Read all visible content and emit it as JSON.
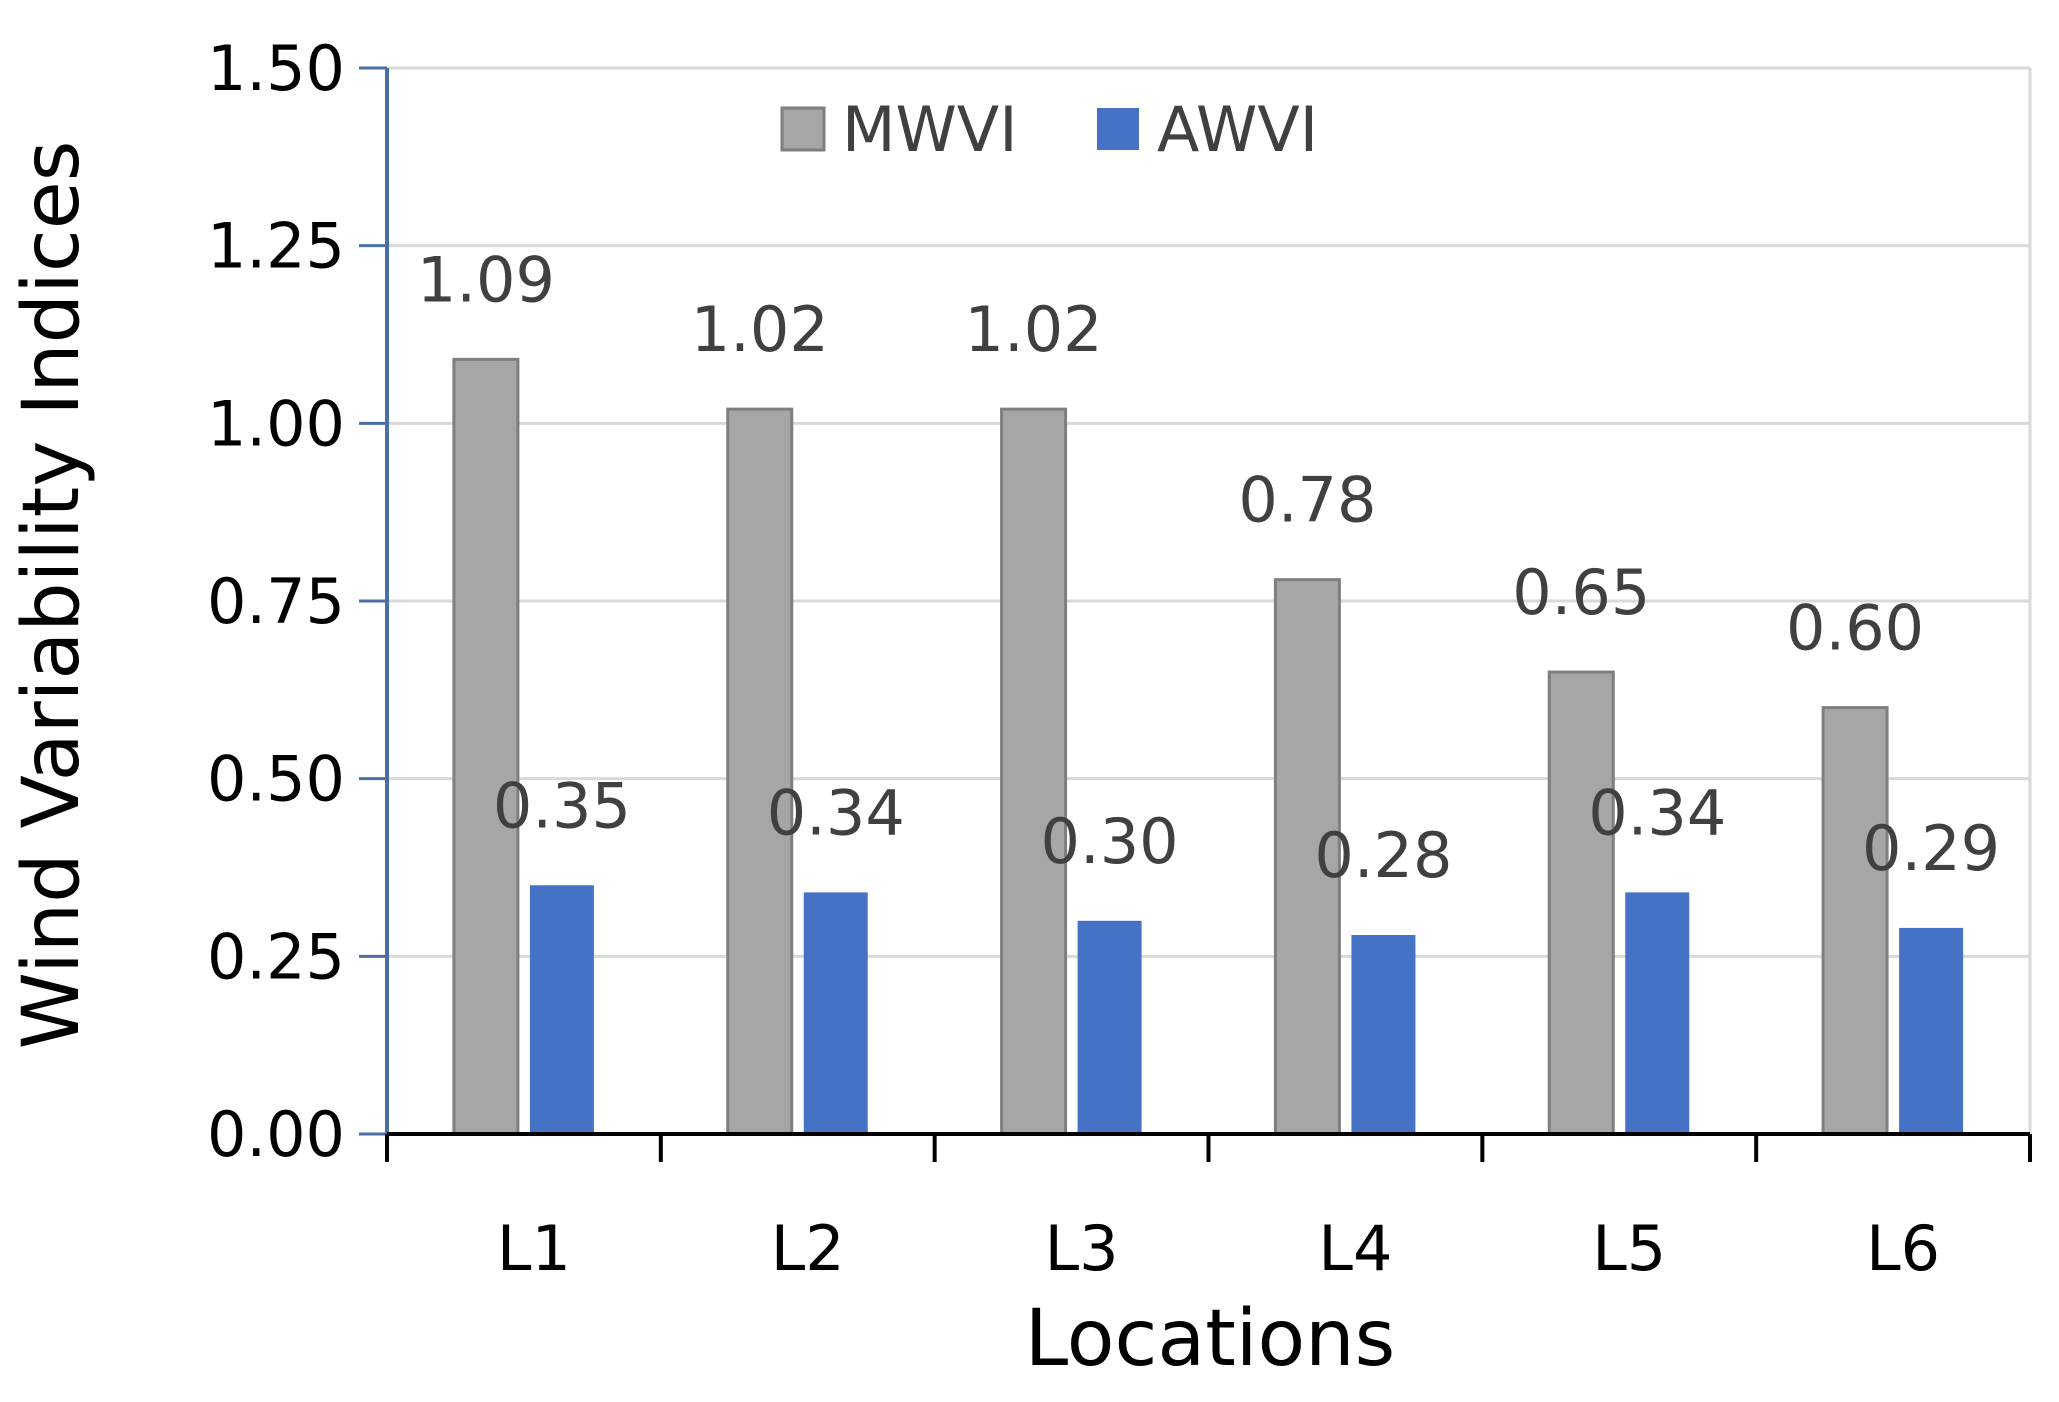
{
  "chart_data": {
    "type": "bar",
    "title": "",
    "xlabel": "Locations",
    "ylabel": "Wind Variability Indices",
    "categories": [
      "L1",
      "L2",
      "L3",
      "L4",
      "L5",
      "L6"
    ],
    "series": [
      {
        "name": "MWVI",
        "color": "#a6a6a6",
        "values": [
          1.09,
          1.02,
          1.02,
          0.78,
          0.65,
          0.6
        ],
        "labels": [
          "1.09",
          "1.02",
          "1.02",
          "0.78",
          "0.65",
          "0.60"
        ]
      },
      {
        "name": "AWVI",
        "color": "#4472c4",
        "values": [
          0.35,
          0.34,
          0.3,
          0.28,
          0.34,
          0.29
        ],
        "labels": [
          "0.35",
          "0.34",
          "0.30",
          "0.28",
          "0.34",
          "0.29"
        ]
      }
    ],
    "ylim": [
      0,
      1.5
    ],
    "yticks": [
      "0.00",
      "0.25",
      "0.50",
      "0.75",
      "1.00",
      "1.25",
      "1.50"
    ],
    "grid": true,
    "legend_position": "top"
  }
}
